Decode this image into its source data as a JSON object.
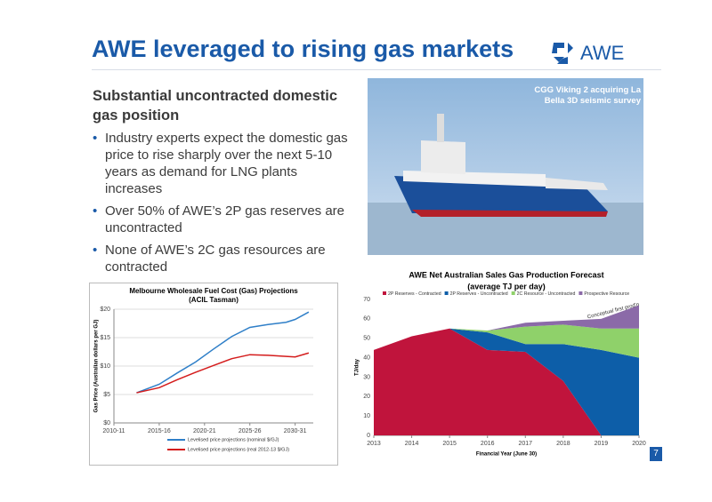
{
  "header": {
    "title": "AWE leveraged to rising gas markets",
    "logo": "AWE"
  },
  "subtitle": "Substantial uncontracted domestic gas position",
  "bullets": [
    "Industry experts expect the domestic gas price to rise sharply over the next 5-10 years as demand for LNG plants increases",
    "Over 50% of AWE’s 2P gas reserves are uncontracted",
    "None of AWE’s 2C gas resources are contracted"
  ],
  "photo_caption": "CGG Viking 2 acquiring La Bella 3D seismic survey",
  "page_number": "7",
  "chart_data": [
    {
      "type": "line",
      "title": "Melbourne Wholesale Fuel Cost (Gas) Projections",
      "subtitle": "(ACIL Tasman)",
      "y_label": "Gas Price (Australian dollars per GJ)",
      "x": [
        2012.5,
        2015,
        2017,
        2019,
        2021,
        2023,
        2025,
        2027,
        2029,
        2030,
        2031.5
      ],
      "series": [
        {
          "name": "Levelised price projections (nominal $/GJ)",
          "color": "#2f7fc8",
          "values": [
            5.3,
            6.8,
            8.8,
            10.7,
            13,
            15.2,
            16.8,
            17.3,
            17.7,
            18.2,
            19.5
          ]
        },
        {
          "name": "Levelised price projections (real 2012-13 $/GJ)",
          "color": "#d41c1c",
          "values": [
            5.3,
            6.2,
            7.6,
            8.9,
            10.1,
            11.3,
            12,
            11.9,
            11.7,
            11.6,
            12.3
          ]
        }
      ],
      "xlim": [
        2010,
        2032
      ],
      "xticks": [
        {
          "value": 2010,
          "label": "2010-11"
        },
        {
          "value": 2015,
          "label": "2015-16"
        },
        {
          "value": 2020,
          "label": "2020-21"
        },
        {
          "value": 2025,
          "label": "2025-26"
        },
        {
          "value": 2030,
          "label": "2030-31"
        }
      ],
      "ylim": [
        0,
        20
      ],
      "yticks": [
        {
          "value": 0,
          "label": "$0"
        },
        {
          "value": 5,
          "label": "$5"
        },
        {
          "value": 10,
          "label": "$10"
        },
        {
          "value": 15,
          "label": "$15"
        },
        {
          "value": 20,
          "label": "$20"
        }
      ],
      "grid": true
    },
    {
      "type": "area",
      "title": "AWE Net Australian Sales Gas Production Forecast",
      "subtitle": "(average TJ per day)",
      "x_label": "Financial Year (June 30)",
      "y_label": "TJ/day",
      "annotation": "Conceptual first  prod'n",
      "x": [
        2013,
        2014,
        2015,
        2016,
        2017,
        2018,
        2019,
        2020
      ],
      "series": [
        {
          "name": "2P Reserves - Contracted",
          "color": "#c0143c",
          "values": [
            44,
            51,
            55,
            44,
            43,
            28,
            0,
            0
          ]
        },
        {
          "name": "2P Reserves - Uncontracted",
          "color": "#0d5ea8",
          "values": [
            0,
            0,
            0,
            9,
            4,
            19,
            44,
            40
          ]
        },
        {
          "name": "2C Resource - Uncontracted",
          "color": "#8fd16a",
          "values": [
            0,
            0,
            0,
            1,
            9,
            10,
            11,
            15
          ]
        },
        {
          "name": "Prospective Resource",
          "color": "#8b6aa8",
          "values": [
            0,
            0,
            0,
            0,
            2,
            2,
            5,
            12
          ]
        }
      ],
      "xlim": [
        2013,
        2020
      ],
      "xticks": [
        2013,
        2014,
        2015,
        2016,
        2017,
        2018,
        2019,
        2020
      ],
      "ylim": [
        0,
        70
      ],
      "yticks": [
        0,
        10,
        20,
        30,
        40,
        50,
        60,
        70
      ],
      "grid": false
    }
  ]
}
